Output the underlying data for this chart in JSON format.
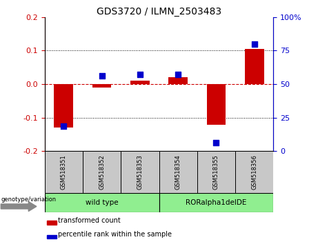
{
  "title": "GDS3720 / ILMN_2503483",
  "samples": [
    "GSM518351",
    "GSM518352",
    "GSM518353",
    "GSM518354",
    "GSM518355",
    "GSM518356"
  ],
  "red_bars": [
    -0.13,
    -0.01,
    0.01,
    0.02,
    -0.12,
    0.105
  ],
  "blue_dots_pct": [
    18.75,
    56.25,
    57.5,
    57.5,
    6.25,
    80.0
  ],
  "ylim_left": [
    -0.2,
    0.2
  ],
  "ylim_right": [
    0,
    100
  ],
  "left_yticks": [
    -0.2,
    -0.1,
    0.0,
    0.1,
    0.2
  ],
  "right_yticks": [
    0,
    25,
    50,
    75,
    100
  ],
  "group_label": "genotype/variation",
  "legend_red": "transformed count",
  "legend_blue": "percentile rank within the sample",
  "red_color": "#CC0000",
  "blue_color": "#0000CC",
  "bar_width": 0.5,
  "dot_size": 30,
  "background_color": "#ffffff",
  "plot_bg": "#ffffff",
  "left_axis_color": "#CC0000",
  "right_axis_color": "#0000CC",
  "group_color": "#90EE90",
  "sample_bg": "#C8C8C8"
}
